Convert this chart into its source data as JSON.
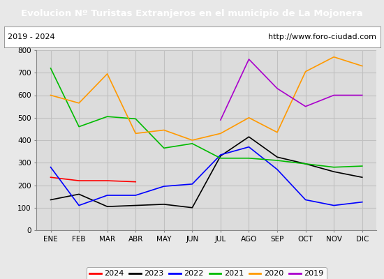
{
  "title": "Evolucion Nº Turistas Extranjeros en el municipio de La Mojonera",
  "subtitle_left": "2019 - 2024",
  "subtitle_right": "http://www.foro-ciudad.com",
  "title_bg_color": "#4472c4",
  "title_text_color": "#ffffff",
  "months": [
    "ENE",
    "FEB",
    "MAR",
    "ABR",
    "MAY",
    "JUN",
    "JUL",
    "AGO",
    "SEP",
    "OCT",
    "NOV",
    "DIC"
  ],
  "series": {
    "2024": {
      "color": "#ff0000",
      "data": [
        235,
        220,
        220,
        215,
        null,
        null,
        null,
        null,
        null,
        null,
        null,
        null
      ]
    },
    "2023": {
      "color": "#000000",
      "data": [
        135,
        160,
        105,
        110,
        115,
        100,
        330,
        415,
        325,
        295,
        260,
        235
      ]
    },
    "2022": {
      "color": "#0000ff",
      "data": [
        280,
        110,
        155,
        155,
        195,
        205,
        335,
        370,
        270,
        135,
        110,
        125
      ]
    },
    "2021": {
      "color": "#00bb00",
      "data": [
        720,
        460,
        505,
        495,
        365,
        385,
        320,
        320,
        310,
        295,
        280,
        285
      ]
    },
    "2020": {
      "color": "#ff9900",
      "data": [
        600,
        565,
        695,
        430,
        445,
        400,
        430,
        500,
        435,
        705,
        770,
        730
      ]
    },
    "2019": {
      "color": "#aa00cc",
      "data": [
        null,
        null,
        null,
        null,
        null,
        null,
        490,
        760,
        630,
        550,
        600,
        600
      ]
    }
  },
  "ylim": [
    0,
    800
  ],
  "yticks": [
    0,
    100,
    200,
    300,
    400,
    500,
    600,
    700,
    800
  ],
  "bg_color": "#e8e8e8",
  "plot_bg_color": "#e8e8e8",
  "inner_bg_color": "#dcdcdc",
  "grid_color": "#c0c0c0",
  "legend_order": [
    "2024",
    "2023",
    "2022",
    "2021",
    "2020",
    "2019"
  ]
}
